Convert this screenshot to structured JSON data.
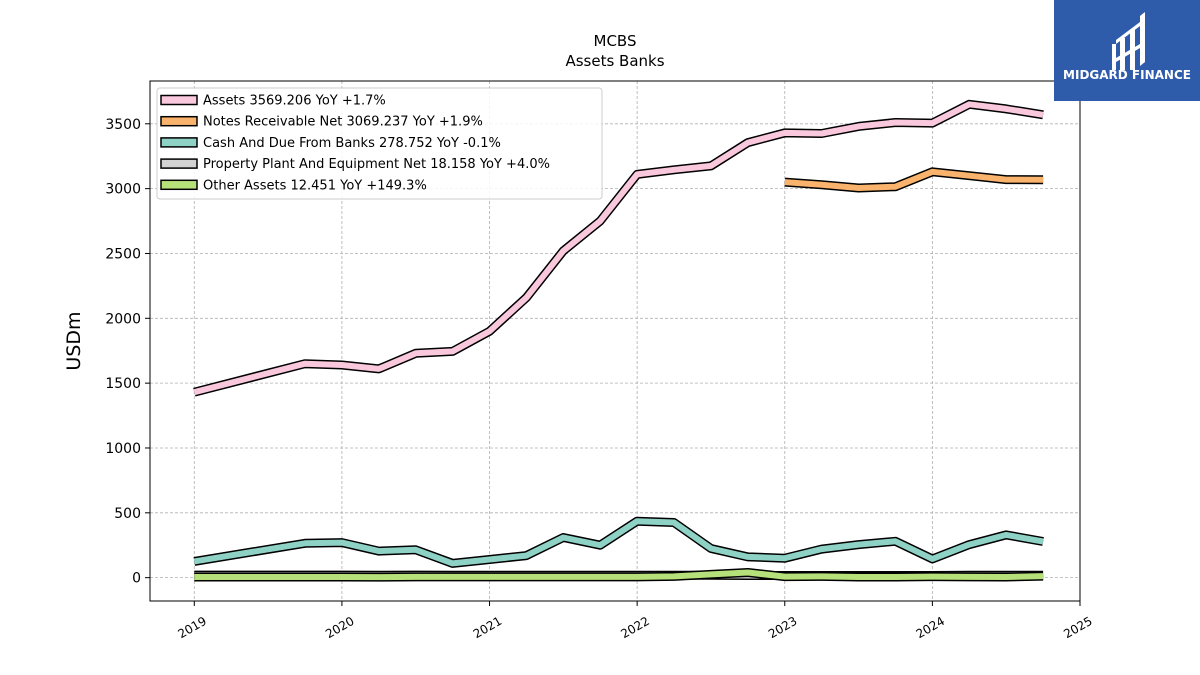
{
  "chart_data": {
    "type": "line",
    "title": "MCBS",
    "subtitle": "Assets Banks",
    "ylabel": "USDm",
    "xlabel": "",
    "xlim": [
      2018.7,
      2025.0
    ],
    "ylim": [
      -180,
      3830
    ],
    "x_ticks": [
      2019,
      2020,
      2021,
      2022,
      2023,
      2024,
      2025
    ],
    "y_ticks": [
      0,
      500,
      1000,
      1500,
      2000,
      2500,
      3000,
      3500
    ],
    "grid": true,
    "legend_position": "top-left",
    "series": [
      {
        "name": "Assets  3569.206 YoY +1.7%",
        "color": "#f9c8dd",
        "points": [
          [
            2019.0,
            1430
          ],
          [
            2019.75,
            1650
          ],
          [
            2020.0,
            1640
          ],
          [
            2020.25,
            1610
          ],
          [
            2020.5,
            1730
          ],
          [
            2020.75,
            1745
          ],
          [
            2021.0,
            1900
          ],
          [
            2021.25,
            2160
          ],
          [
            2021.5,
            2520
          ],
          [
            2021.75,
            2750
          ],
          [
            2022.0,
            3110
          ],
          [
            2022.25,
            3145
          ],
          [
            2022.5,
            3175
          ],
          [
            2022.75,
            3355
          ],
          [
            2023.0,
            3430
          ],
          [
            2023.25,
            3425
          ],
          [
            2023.5,
            3480
          ],
          [
            2023.75,
            3510
          ],
          [
            2024.0,
            3505
          ],
          [
            2024.25,
            3650
          ],
          [
            2024.5,
            3615
          ],
          [
            2024.75,
            3569
          ]
        ]
      },
      {
        "name": "Notes Receivable Net  3069.237 YoY +1.9%",
        "color": "#f9b36d",
        "points": [
          [
            2023.0,
            3050
          ],
          [
            2023.25,
            3030
          ],
          [
            2023.5,
            3005
          ],
          [
            2023.75,
            3015
          ],
          [
            2024.0,
            3130
          ],
          [
            2024.25,
            3100
          ],
          [
            2024.5,
            3070
          ],
          [
            2024.75,
            3069
          ]
        ]
      },
      {
        "name": "Cash And Due From Banks  278.752 YoY -0.1%",
        "color": "#8ed2c6",
        "points": [
          [
            2019.0,
            125
          ],
          [
            2019.75,
            265
          ],
          [
            2020.0,
            270
          ],
          [
            2020.25,
            205
          ],
          [
            2020.5,
            215
          ],
          [
            2020.75,
            110
          ],
          [
            2021.0,
            140
          ],
          [
            2021.25,
            170
          ],
          [
            2021.5,
            310
          ],
          [
            2021.75,
            250
          ],
          [
            2022.0,
            435
          ],
          [
            2022.25,
            425
          ],
          [
            2022.5,
            225
          ],
          [
            2022.75,
            160
          ],
          [
            2023.0,
            150
          ],
          [
            2023.25,
            220
          ],
          [
            2023.5,
            255
          ],
          [
            2023.75,
            280
          ],
          [
            2024.0,
            145
          ],
          [
            2024.25,
            255
          ],
          [
            2024.5,
            330
          ],
          [
            2024.75,
            279
          ]
        ]
      },
      {
        "name": "Property Plant And Equipment Net  18.158 YoY +4.0%",
        "color": "#d3d3d3",
        "points": [
          [
            2019.0,
            20
          ],
          [
            2019.75,
            20
          ],
          [
            2020.0,
            20
          ],
          [
            2020.25,
            19
          ],
          [
            2020.5,
            20
          ],
          [
            2020.75,
            19
          ],
          [
            2021.0,
            19
          ],
          [
            2021.25,
            18
          ],
          [
            2021.5,
            18
          ],
          [
            2021.75,
            18
          ],
          [
            2022.0,
            18
          ],
          [
            2022.25,
            18
          ],
          [
            2022.5,
            18
          ],
          [
            2022.75,
            17
          ],
          [
            2023.0,
            17
          ],
          [
            2023.25,
            17
          ],
          [
            2023.5,
            17
          ],
          [
            2023.75,
            17
          ],
          [
            2024.0,
            17
          ],
          [
            2024.25,
            18
          ],
          [
            2024.5,
            18
          ],
          [
            2024.75,
            18
          ]
        ]
      },
      {
        "name": "Other Assets  12.451 YoY +149.3%",
        "color": "#b5e07a",
        "points": [
          [
            2019.0,
            5
          ],
          [
            2019.75,
            5
          ],
          [
            2020.0,
            5
          ],
          [
            2020.25,
            4
          ],
          [
            2020.5,
            6
          ],
          [
            2020.75,
            6
          ],
          [
            2021.0,
            6
          ],
          [
            2021.25,
            6
          ],
          [
            2021.5,
            6
          ],
          [
            2021.75,
            6
          ],
          [
            2022.0,
            6
          ],
          [
            2022.25,
            10
          ],
          [
            2022.5,
            25
          ],
          [
            2022.75,
            40
          ],
          [
            2023.0,
            8
          ],
          [
            2023.25,
            10
          ],
          [
            2023.5,
            5
          ],
          [
            2023.75,
            5
          ],
          [
            2024.0,
            8
          ],
          [
            2024.25,
            6
          ],
          [
            2024.5,
            5
          ],
          [
            2024.75,
            12
          ]
        ]
      }
    ]
  },
  "logo": {
    "text": "MIDGARD FINANCE"
  }
}
